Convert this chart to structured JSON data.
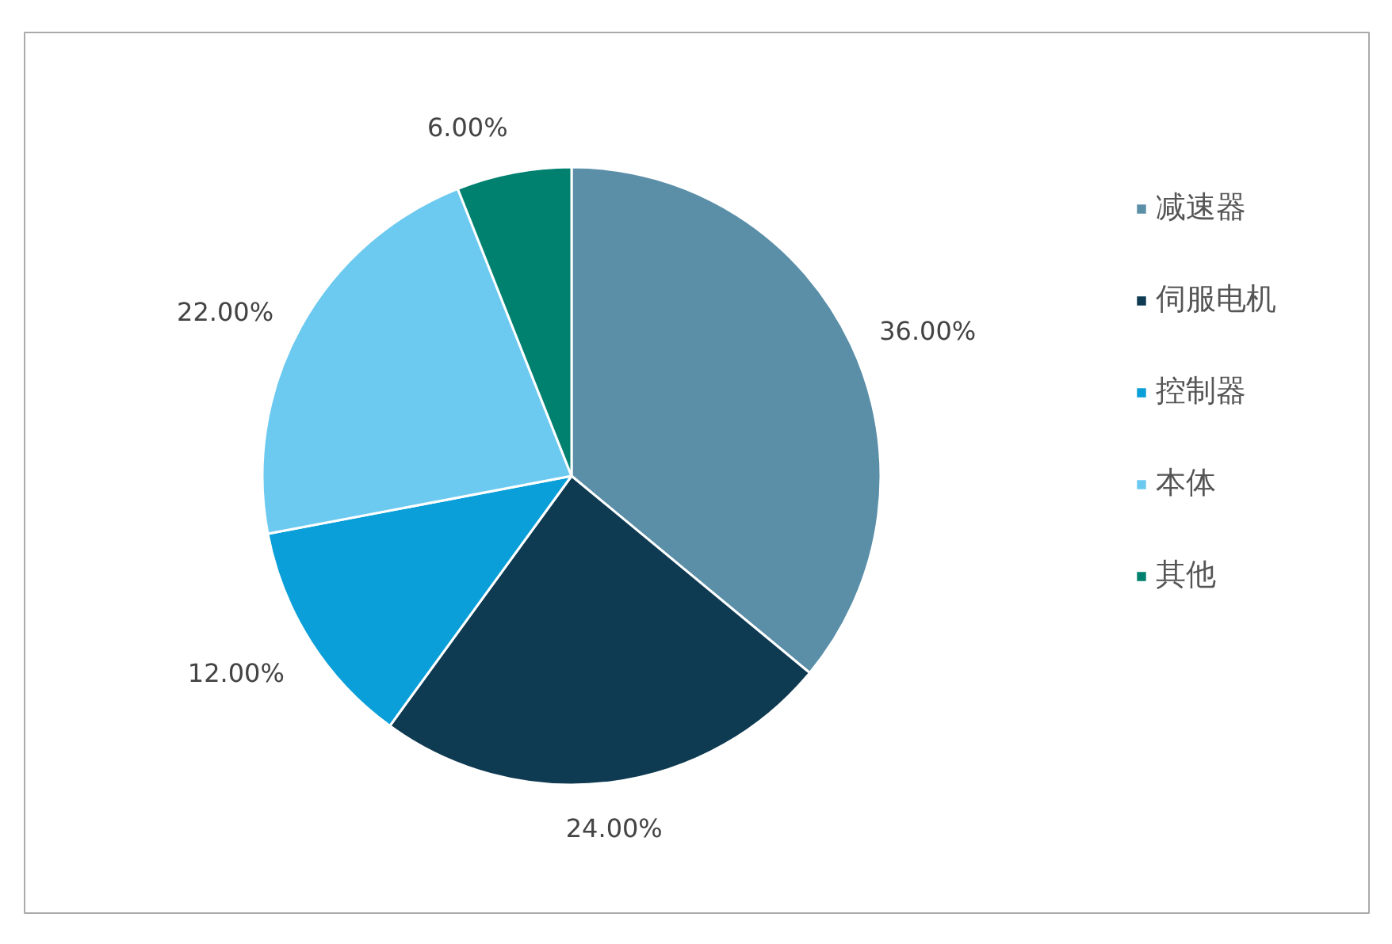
{
  "chart_data": {
    "type": "pie",
    "categories": [
      "减速器",
      "伺服电机",
      "控制器",
      "本体",
      "其他"
    ],
    "values": [
      36,
      24,
      12,
      22,
      6
    ],
    "colors": [
      "#5b8fa8",
      "#0e3a52",
      "#0a9fd8",
      "#6ccaf0",
      "#00806e"
    ],
    "value_labels": [
      "36.00%",
      "24.00%",
      "12.00%",
      "22.00%",
      "6.00%"
    ],
    "legend": "right"
  }
}
